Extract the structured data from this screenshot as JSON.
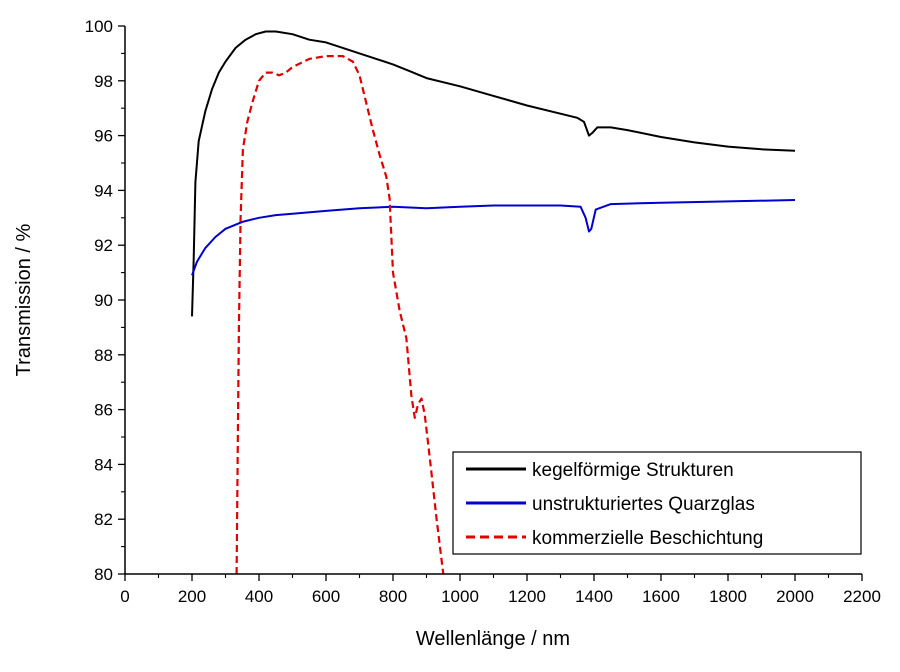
{
  "chart_data": {
    "type": "line",
    "xlabel": "Wellenlänge / nm",
    "ylabel": "Transmission / %",
    "xlim": [
      0,
      2200
    ],
    "ylim": [
      80,
      100
    ],
    "x_ticks": [
      0,
      200,
      400,
      600,
      800,
      1000,
      1200,
      1400,
      1600,
      1800,
      2000,
      2200
    ],
    "y_ticks": [
      80,
      82,
      84,
      86,
      88,
      90,
      92,
      94,
      96,
      98,
      100
    ],
    "grid": false,
    "legend_position": "bottom-right",
    "series": [
      {
        "name": "kegelförmige Strukturen",
        "color": "#000000",
        "style": "solid",
        "points": [
          [
            200,
            89.4
          ],
          [
            205,
            91.5
          ],
          [
            210,
            94.3
          ],
          [
            220,
            95.8
          ],
          [
            240,
            96.9
          ],
          [
            260,
            97.7
          ],
          [
            280,
            98.3
          ],
          [
            300,
            98.7
          ],
          [
            330,
            99.2
          ],
          [
            360,
            99.5
          ],
          [
            390,
            99.7
          ],
          [
            420,
            99.8
          ],
          [
            450,
            99.8
          ],
          [
            500,
            99.7
          ],
          [
            550,
            99.5
          ],
          [
            600,
            99.4
          ],
          [
            650,
            99.2
          ],
          [
            700,
            99.0
          ],
          [
            750,
            98.8
          ],
          [
            800,
            98.6
          ],
          [
            850,
            98.35
          ],
          [
            900,
            98.1
          ],
          [
            1000,
            97.8
          ],
          [
            1100,
            97.45
          ],
          [
            1200,
            97.1
          ],
          [
            1300,
            96.8
          ],
          [
            1350,
            96.65
          ],
          [
            1370,
            96.5
          ],
          [
            1385,
            96.0
          ],
          [
            1395,
            96.1
          ],
          [
            1410,
            96.3
          ],
          [
            1450,
            96.3
          ],
          [
            1500,
            96.2
          ],
          [
            1600,
            95.95
          ],
          [
            1700,
            95.75
          ],
          [
            1800,
            95.6
          ],
          [
            1900,
            95.5
          ],
          [
            2000,
            95.45
          ]
        ]
      },
      {
        "name": "unstrukturiertes Quarzglas",
        "color": "#0000cc",
        "style": "solid",
        "points": [
          [
            200,
            90.9
          ],
          [
            215,
            91.4
          ],
          [
            240,
            91.9
          ],
          [
            270,
            92.3
          ],
          [
            300,
            92.6
          ],
          [
            350,
            92.85
          ],
          [
            400,
            93.0
          ],
          [
            450,
            93.1
          ],
          [
            500,
            93.15
          ],
          [
            600,
            93.25
          ],
          [
            700,
            93.35
          ],
          [
            800,
            93.4
          ],
          [
            900,
            93.35
          ],
          [
            1000,
            93.4
          ],
          [
            1100,
            93.45
          ],
          [
            1200,
            93.45
          ],
          [
            1300,
            93.45
          ],
          [
            1360,
            93.4
          ],
          [
            1375,
            93.0
          ],
          [
            1385,
            92.5
          ],
          [
            1392,
            92.6
          ],
          [
            1405,
            93.3
          ],
          [
            1450,
            93.5
          ],
          [
            1600,
            93.55
          ],
          [
            1800,
            93.6
          ],
          [
            2000,
            93.65
          ]
        ]
      },
      {
        "name": "kommerzielle Beschichtung",
        "color": "#e00000",
        "style": "dashed",
        "points": [
          [
            333,
            80.0
          ],
          [
            336,
            84.0
          ],
          [
            340,
            89.0
          ],
          [
            345,
            93.0
          ],
          [
            352,
            95.5
          ],
          [
            365,
            96.5
          ],
          [
            380,
            97.2
          ],
          [
            400,
            98.0
          ],
          [
            420,
            98.3
          ],
          [
            440,
            98.3
          ],
          [
            460,
            98.2
          ],
          [
            480,
            98.3
          ],
          [
            500,
            98.5
          ],
          [
            550,
            98.8
          ],
          [
            600,
            98.9
          ],
          [
            650,
            98.9
          ],
          [
            680,
            98.7
          ],
          [
            700,
            98.2
          ],
          [
            720,
            97.2
          ],
          [
            740,
            96.2
          ],
          [
            760,
            95.3
          ],
          [
            780,
            94.5
          ],
          [
            790,
            93.7
          ],
          [
            800,
            91.0
          ],
          [
            820,
            89.6
          ],
          [
            840,
            88.6
          ],
          [
            855,
            86.5
          ],
          [
            865,
            85.7
          ],
          [
            875,
            86.2
          ],
          [
            885,
            86.4
          ],
          [
            895,
            85.8
          ],
          [
            910,
            84.2
          ],
          [
            930,
            82.0
          ],
          [
            945,
            80.5
          ],
          [
            950,
            80.0
          ]
        ]
      }
    ]
  }
}
